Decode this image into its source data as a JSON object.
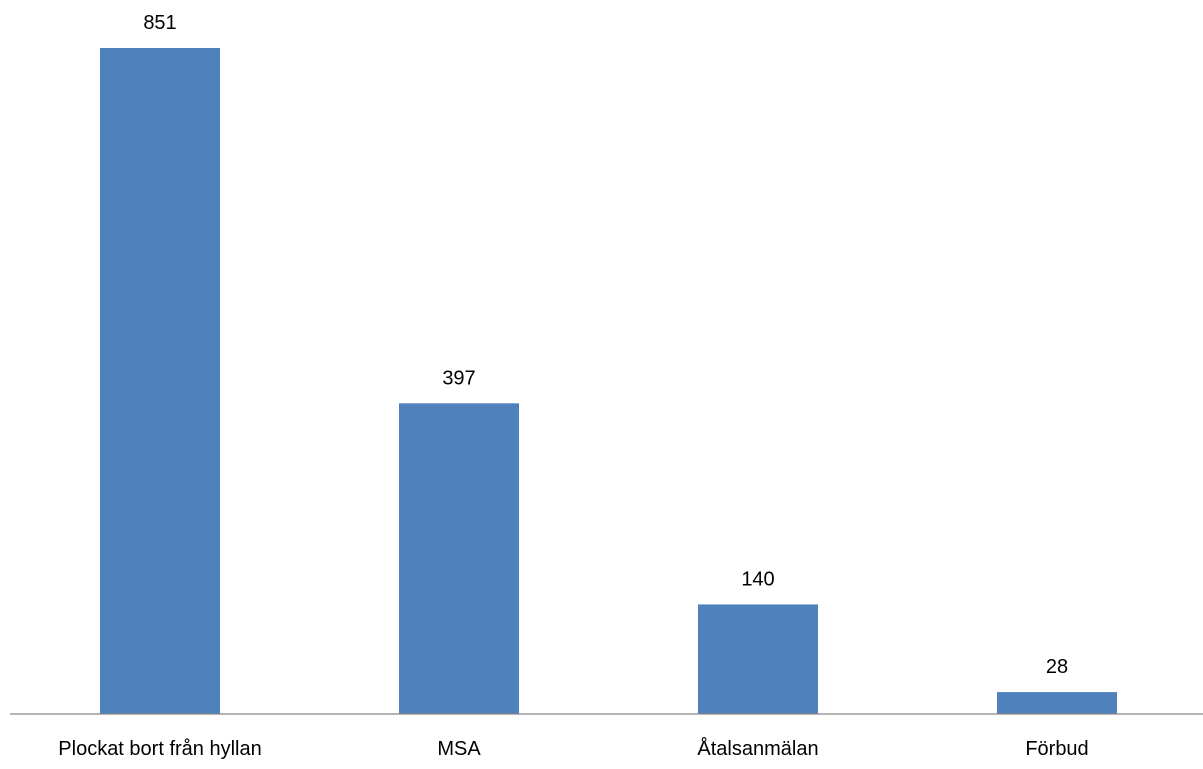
{
  "chart_data": {
    "type": "bar",
    "categories": [
      "Plockat bort från hyllan",
      "MSA",
      "Åtalsanmälan",
      "Förbud"
    ],
    "values": [
      851,
      397,
      140,
      28
    ],
    "data_labels": [
      "851",
      "397",
      "140",
      "28"
    ],
    "title": "",
    "xlabel": "",
    "ylabel": "",
    "ylim": [
      0,
      851
    ],
    "grid": false,
    "legend": "none",
    "bar_color": "#4F81BD",
    "axis_color": "#868686"
  }
}
